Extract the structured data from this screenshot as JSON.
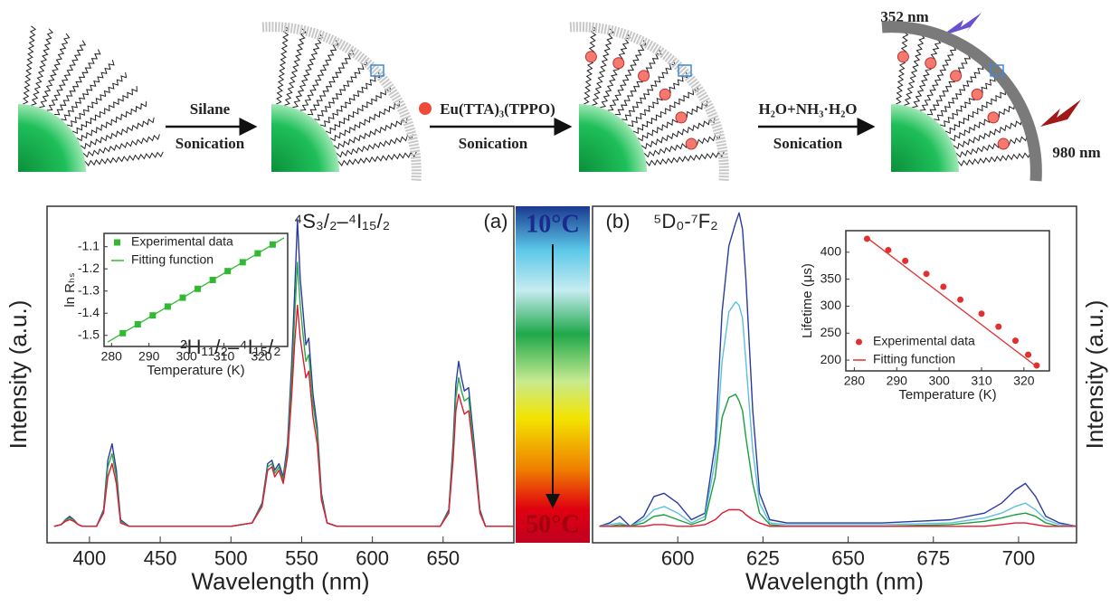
{
  "scheme": {
    "step1": "Silane",
    "step1_method": "Sonication",
    "step2": "Eu(TTA)₃(TPPO)",
    "step2_method": "Sonication",
    "step3": "H₂O+NH₃·H₂O",
    "step3_method": "Sonication",
    "excitation": "352 nm",
    "excitation_nir": "980 nm"
  },
  "colorbar": {
    "top": "10°C",
    "bottom": "50°C"
  },
  "chart_data": [
    {
      "type": "line",
      "panel": "(a)",
      "annotations": [
        "⁴S₃/₂–⁴I₁₅/₂",
        "²H₁₁/₂–⁴I₁₅/₂"
      ],
      "xlabel": "Wavelength (nm)",
      "ylabel": "Intensity (a.u.)",
      "xlim": [
        370,
        700
      ],
      "xticks": [
        400,
        450,
        500,
        550,
        600,
        650
      ],
      "ylim": [
        0,
        1.02
      ],
      "x": [
        375,
        380,
        383,
        386,
        389,
        392,
        395,
        400,
        405,
        410,
        413,
        416,
        419,
        422,
        428,
        440,
        470,
        500,
        515,
        522,
        526,
        529,
        531,
        534,
        537,
        540,
        543,
        545,
        547,
        549,
        551,
        553,
        555,
        558,
        561,
        564,
        568,
        575,
        600,
        630,
        648,
        654,
        657,
        659,
        661,
        663,
        665,
        668,
        672,
        676,
        680,
        690,
        700
      ],
      "series": [
        {
          "color": "#2b3a9e",
          "values": [
            0.05,
            0.055,
            0.07,
            0.08,
            0.07,
            0.055,
            0.05,
            0.05,
            0.05,
            0.1,
            0.25,
            0.3,
            0.22,
            0.07,
            0.05,
            0.05,
            0.05,
            0.05,
            0.06,
            0.12,
            0.24,
            0.25,
            0.22,
            0.24,
            0.2,
            0.3,
            0.55,
            0.75,
            0.98,
            0.8,
            0.7,
            0.6,
            0.62,
            0.45,
            0.35,
            0.15,
            0.06,
            0.05,
            0.05,
            0.05,
            0.05,
            0.1,
            0.3,
            0.48,
            0.55,
            0.5,
            0.46,
            0.47,
            0.3,
            0.1,
            0.05,
            0.05,
            0.05
          ]
        },
        {
          "color": "#2aa84a",
          "values": [
            0.05,
            0.055,
            0.068,
            0.075,
            0.068,
            0.055,
            0.05,
            0.05,
            0.05,
            0.095,
            0.23,
            0.27,
            0.2,
            0.065,
            0.05,
            0.05,
            0.05,
            0.05,
            0.06,
            0.115,
            0.23,
            0.24,
            0.21,
            0.23,
            0.19,
            0.28,
            0.5,
            0.68,
            0.85,
            0.72,
            0.63,
            0.55,
            0.57,
            0.42,
            0.33,
            0.14,
            0.06,
            0.05,
            0.05,
            0.05,
            0.05,
            0.095,
            0.28,
            0.44,
            0.5,
            0.46,
            0.43,
            0.44,
            0.28,
            0.095,
            0.05,
            0.05,
            0.05
          ]
        },
        {
          "color": "#e01830",
          "values": [
            0.05,
            0.055,
            0.065,
            0.07,
            0.065,
            0.055,
            0.05,
            0.05,
            0.05,
            0.09,
            0.2,
            0.24,
            0.18,
            0.06,
            0.05,
            0.05,
            0.05,
            0.05,
            0.06,
            0.11,
            0.22,
            0.23,
            0.2,
            0.22,
            0.18,
            0.26,
            0.45,
            0.6,
            0.72,
            0.62,
            0.56,
            0.5,
            0.52,
            0.38,
            0.3,
            0.13,
            0.06,
            0.05,
            0.05,
            0.05,
            0.05,
            0.09,
            0.25,
            0.4,
            0.45,
            0.42,
            0.39,
            0.4,
            0.26,
            0.09,
            0.05,
            0.05,
            0.05
          ]
        }
      ]
    },
    {
      "type": "scatter",
      "xlabel": "Temperature (K)",
      "ylabel": "ln Rₕₛ",
      "legend": "upper left",
      "xlim": [
        278,
        327
      ],
      "xticks": [
        280,
        290,
        300,
        310,
        320
      ],
      "ylim": [
        -1.55,
        -1.04
      ],
      "yticks": [
        -1.5,
        -1.4,
        -1.3,
        -1.2,
        -1.1
      ],
      "series": [
        {
          "name": "Experimental data",
          "color": "#33b833",
          "style": "markers",
          "x": [
            283,
            287,
            291,
            295,
            299,
            303,
            307,
            311,
            315,
            319,
            323
          ],
          "values": [
            -1.49,
            -1.45,
            -1.41,
            -1.37,
            -1.33,
            -1.29,
            -1.25,
            -1.21,
            -1.17,
            -1.13,
            -1.09
          ]
        },
        {
          "name": "Fitting function",
          "color": "#33b833",
          "style": "line",
          "x": [
            279,
            326
          ],
          "values": [
            -1.53,
            -1.06
          ]
        }
      ]
    },
    {
      "type": "line",
      "panel": "(b)",
      "annotations": [
        "⁵D₀-⁷F₂"
      ],
      "xlabel": "Wavelength (nm)",
      "ylabel": "Intensity (a.u.)",
      "xlim": [
        575,
        717
      ],
      "xticks": [
        600,
        625,
        650,
        675,
        700
      ],
      "ylim": [
        0,
        1.02
      ],
      "x": [
        577,
        580,
        583,
        586,
        590,
        593,
        596,
        600,
        604,
        608,
        611,
        613,
        615,
        617,
        618,
        619,
        620,
        622,
        624,
        627,
        632,
        640,
        660,
        680,
        690,
        695,
        699,
        702,
        705,
        708,
        712,
        717
      ],
      "series": [
        {
          "color": "#2b3a9e",
          "values": [
            0.05,
            0.06,
            0.08,
            0.05,
            0.08,
            0.14,
            0.15,
            0.12,
            0.07,
            0.09,
            0.3,
            0.7,
            0.9,
            0.97,
            1.0,
            0.95,
            0.8,
            0.4,
            0.15,
            0.07,
            0.06,
            0.06,
            0.06,
            0.07,
            0.09,
            0.12,
            0.16,
            0.18,
            0.14,
            0.08,
            0.06,
            0.05
          ]
        },
        {
          "color": "#5bc0de",
          "values": [
            0.05,
            0.055,
            0.06,
            0.05,
            0.07,
            0.1,
            0.11,
            0.09,
            0.06,
            0.08,
            0.25,
            0.55,
            0.7,
            0.73,
            0.72,
            0.68,
            0.55,
            0.28,
            0.12,
            0.06,
            0.055,
            0.055,
            0.055,
            0.06,
            0.075,
            0.09,
            0.11,
            0.12,
            0.1,
            0.07,
            0.055,
            0.05
          ]
        },
        {
          "color": "#1a9e3c",
          "values": [
            0.05,
            0.05,
            0.055,
            0.05,
            0.06,
            0.08,
            0.085,
            0.07,
            0.055,
            0.07,
            0.2,
            0.38,
            0.44,
            0.45,
            0.43,
            0.4,
            0.32,
            0.18,
            0.09,
            0.055,
            0.05,
            0.05,
            0.05,
            0.055,
            0.065,
            0.075,
            0.085,
            0.09,
            0.08,
            0.06,
            0.05,
            0.05
          ]
        },
        {
          "color": "#e01830",
          "values": [
            0.05,
            0.05,
            0.05,
            0.05,
            0.05,
            0.055,
            0.055,
            0.05,
            0.05,
            0.055,
            0.07,
            0.09,
            0.1,
            0.1,
            0.1,
            0.095,
            0.085,
            0.07,
            0.06,
            0.05,
            0.05,
            0.05,
            0.05,
            0.05,
            0.05,
            0.055,
            0.06,
            0.06,
            0.055,
            0.05,
            0.05,
            0.05
          ]
        }
      ]
    },
    {
      "type": "scatter",
      "xlabel": "Temperature (K)",
      "ylabel": "Lifetime (μs)",
      "legend": "lower left",
      "xlim": [
        278,
        326
      ],
      "xticks": [
        280,
        290,
        300,
        310,
        320
      ],
      "ylim": [
        180,
        440
      ],
      "yticks": [
        200,
        250,
        300,
        350,
        400
      ],
      "series": [
        {
          "name": "Experimental data",
          "color": "#e03030",
          "style": "markers",
          "x": [
            283,
            288,
            292,
            297,
            301,
            305,
            310,
            314,
            318,
            321,
            323
          ],
          "values": [
            425,
            404,
            384,
            360,
            336,
            312,
            286,
            262,
            236,
            210,
            190
          ]
        },
        {
          "name": "Fitting function",
          "color": "#e03030",
          "style": "line",
          "x": [
            283,
            323
          ],
          "values": [
            427,
            188
          ]
        }
      ]
    }
  ]
}
